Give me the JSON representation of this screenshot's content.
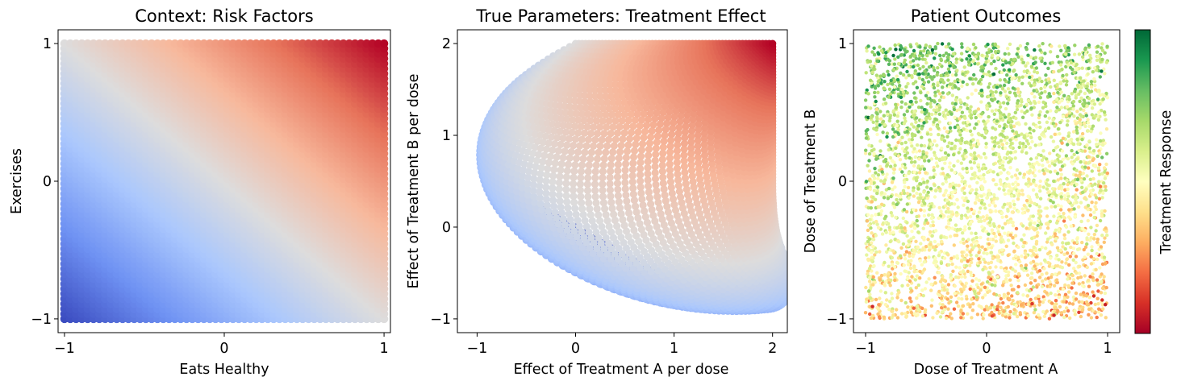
{
  "chart_data": [
    {
      "type": "scatter",
      "title": "Context: Risk Factors",
      "xlabel": "Eats Healthy",
      "ylabel": "Exercises",
      "xlim": [
        -1.04,
        1.04
      ],
      "ylim": [
        -1.1,
        1.1
      ],
      "xticks": [
        -1,
        0,
        1
      ],
      "yticks": [
        -1,
        0,
        1
      ],
      "xticklabels": [
        "−1",
        "0",
        "1"
      ],
      "yticklabels": [
        "−1",
        "0",
        "1"
      ],
      "grid": false,
      "color_by": "x + y",
      "colormap": "coolwarm"
    },
    {
      "type": "scatter",
      "title": "True Parameters: Treatment Effect",
      "xlabel": "Effect of Treatment A per dose",
      "ylabel": "Effect of Treatment B per dose",
      "xlim": [
        -1.2,
        2.15
      ],
      "ylim": [
        -1.15,
        2.15
      ],
      "xticks": [
        -1,
        0,
        1,
        2
      ],
      "yticks": [
        -1,
        0,
        1,
        2
      ],
      "xticklabels": [
        "−1",
        "0",
        "1",
        "2"
      ],
      "yticklabels": [
        "−1",
        "0",
        "1",
        "2"
      ],
      "mapping": "context grid mapped to treatment effect surface; extreme points (-1,1), (0,2), (0,0), (1,-1), (2,0), (2,2)",
      "colormap": "coolwarm",
      "grid": false
    },
    {
      "type": "scatter",
      "title": "Patient Outcomes",
      "xlabel": "Dose of Treatment A",
      "ylabel": "Dose of Treatment B",
      "xlim": [
        -1.1,
        1.1
      ],
      "ylim": [
        -1.1,
        1.1
      ],
      "xticks": [
        -1,
        0,
        1
      ],
      "yticks": [
        -1,
        0,
        1
      ],
      "xticklabels": [
        "−1",
        "0",
        "1"
      ],
      "yticklabels": [
        "−1",
        "0",
        "1"
      ],
      "points": "approximately 4000 random doses uniformly in [-1,1] x [-1,1]",
      "colormap": "RdYlGn",
      "colorbar_label": "Treatment Response",
      "grid": false
    }
  ],
  "colors": {
    "coolwarm": [
      "#3b4cc0",
      "#6f92f3",
      "#aac7fd",
      "#dddcdc",
      "#f7b89c",
      "#e7745b",
      "#b40426"
    ],
    "RdYlGn": [
      "#a50026",
      "#d73027",
      "#f46d43",
      "#fdae61",
      "#fee08b",
      "#ffffbf",
      "#d9ef8b",
      "#a6d96a",
      "#66bd63",
      "#1a9850",
      "#006837"
    ]
  }
}
